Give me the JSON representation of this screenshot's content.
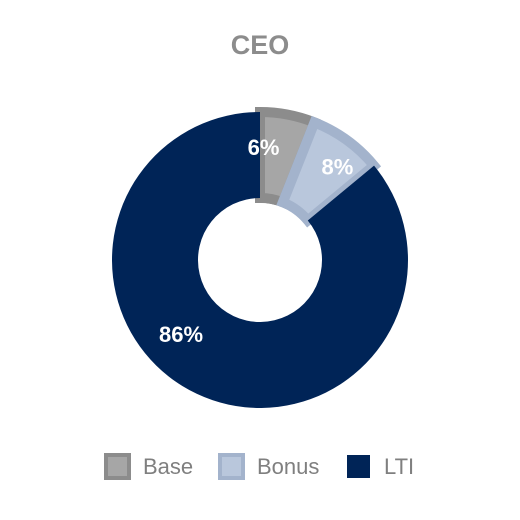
{
  "chart_data": {
    "type": "pie",
    "title": "CEO",
    "donut": true,
    "legend_position": "bottom",
    "slices": [
      {
        "name": "Base",
        "value": 6,
        "label": "6%",
        "color": "#a6a6a6",
        "edge_color": "#8c8c8c"
      },
      {
        "name": "Bonus",
        "value": 8,
        "label": "8%",
        "color": "#b9c7dc",
        "edge_color": "#a3b3cc"
      },
      {
        "name": "LTI",
        "value": 86,
        "label": "86%",
        "color": "#002457",
        "edge_color": "#002457"
      }
    ]
  }
}
